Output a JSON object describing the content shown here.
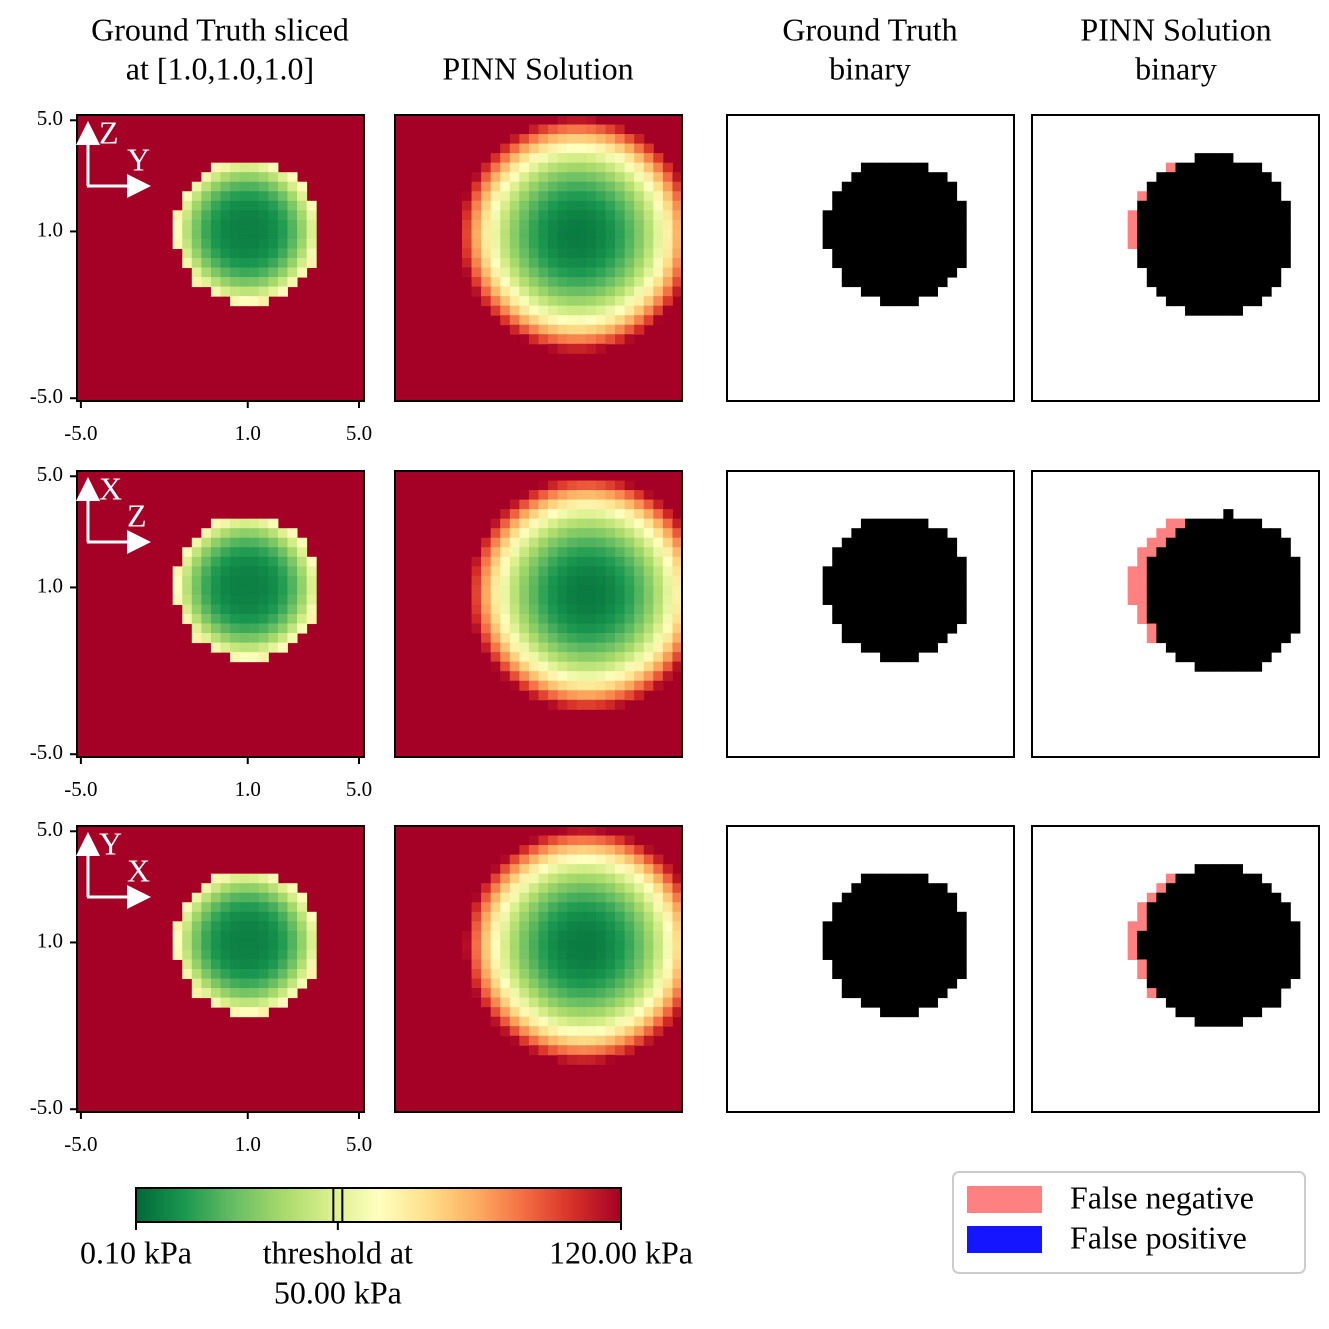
{
  "chart_data": {
    "type": "heatmap",
    "titles": [
      [
        "Ground Truth sliced",
        "at [1.0,1.0,1.0]"
      ],
      [
        "PINN Solution"
      ],
      [
        "Ground Truth",
        "binary"
      ],
      [
        "PINN Solution",
        "binary"
      ]
    ],
    "rows": [
      {
        "axes": [
          "Z",
          "Y"
        ]
      },
      {
        "axes": [
          "X",
          "Z"
        ]
      },
      {
        "axes": [
          "Y",
          "X"
        ]
      }
    ],
    "xlim": [
      -5.14,
      5.18
    ],
    "ylim": [
      -5.1,
      5.19
    ],
    "xticks": [
      {
        "value": -5.0,
        "label": "-5.0"
      },
      {
        "value": 1.0,
        "label": "1.0"
      },
      {
        "value": 5.0,
        "label": "5.0"
      }
    ],
    "yticks": [
      {
        "value": -5.0,
        "label": "-5.0"
      },
      {
        "value": 1.0,
        "label": "1.0"
      },
      {
        "value": 5.0,
        "label": "5.0"
      }
    ],
    "colorbar": {
      "cmap": "RdYlGn_r",
      "clim": [
        0.1,
        120
      ],
      "min_label": "0.10 kPa",
      "max_label": "120.00 kPa",
      "threshold": 50,
      "threshold_label": [
        "threshold at",
        "50.00 kPa"
      ]
    },
    "legend": [
      {
        "name": "False negative",
        "color": "#ff8080"
      },
      {
        "name": "False positive",
        "color": "#1515ff"
      }
    ]
  }
}
